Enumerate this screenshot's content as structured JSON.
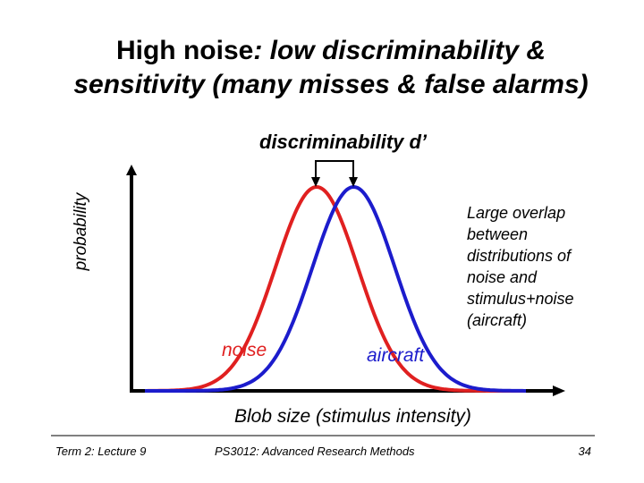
{
  "title": {
    "part1": "High noise",
    "part2": ": low discriminability & sensitivity (many misses & false alarms)"
  },
  "labels": {
    "dprime": "discriminability d’",
    "y_axis": "probability",
    "x_axis": "Blob size (stimulus intensity)",
    "annotation": "Large overlap between distributions of noise and stimulus+noise (aircraft)",
    "noise": "noise",
    "aircraft": "aircraft"
  },
  "distributions": {
    "noise": {
      "mean": 0,
      "sd": 1,
      "color": "#e02020"
    },
    "aircraft": {
      "mean": 0.45,
      "sd": 1,
      "color": "#1c1ccc"
    }
  },
  "footer": {
    "left": "Term 2: Lecture 9",
    "center": "PS3012: Advanced Research Methods",
    "page": "34"
  }
}
